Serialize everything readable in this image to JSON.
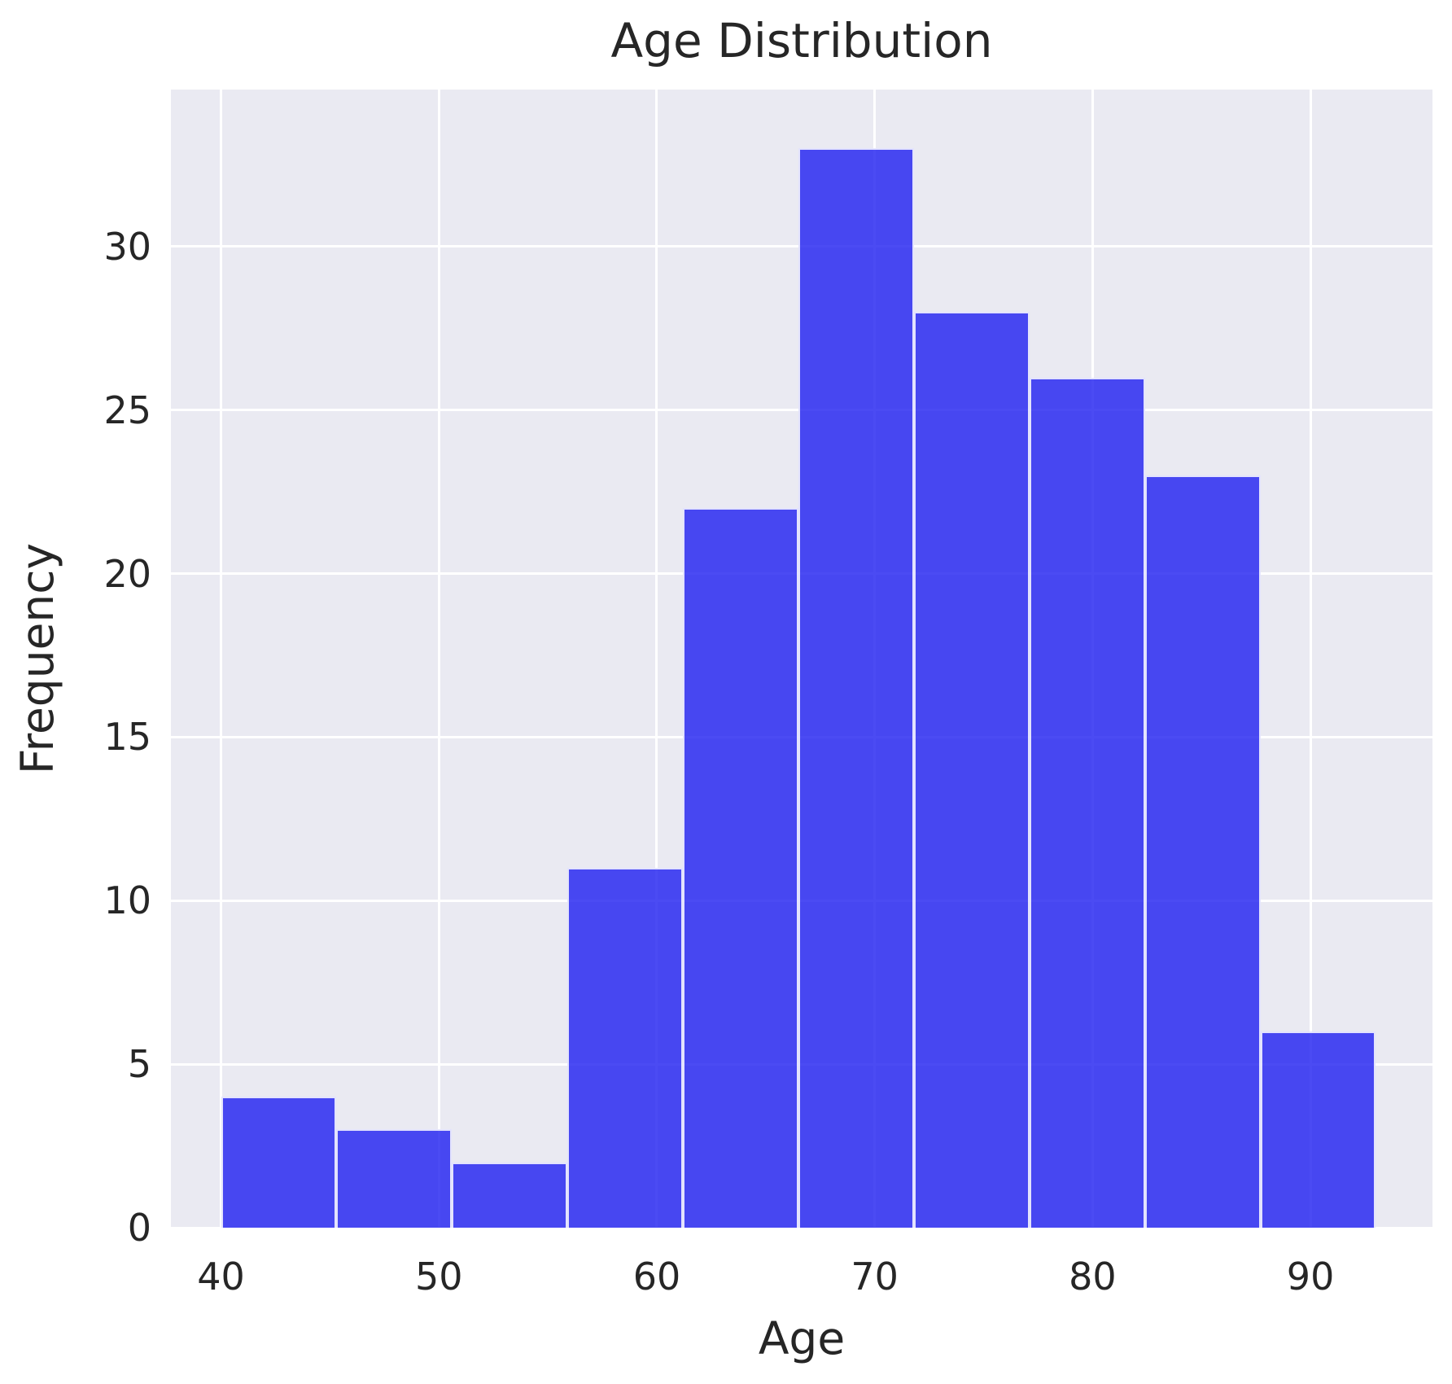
{
  "chart_data": {
    "type": "bar",
    "subtype": "histogram",
    "title": "Age Distribution",
    "xlabel": "Age",
    "ylabel": "Frequency",
    "bin_edges": [
      40,
      45.3,
      50.6,
      55.9,
      61.2,
      66.5,
      71.8,
      77.1,
      82.4,
      87.7,
      93
    ],
    "values": [
      4,
      3,
      2,
      11,
      22,
      33,
      28,
      26,
      23,
      6
    ],
    "x_ticks": [
      40,
      50,
      60,
      70,
      80,
      90
    ],
    "y_ticks": [
      0,
      5,
      10,
      15,
      20,
      25,
      30
    ],
    "xlim": [
      37.7,
      95.6
    ],
    "ylim": [
      0,
      34.8
    ],
    "grid": true,
    "legend": null,
    "colors": {
      "bar_fill": "rgba(30,30,240,0.8)",
      "bar_fill_hex_apparent": "#4646f0",
      "bar_edge": "rgba(255,255,255,0.85)",
      "plot_background": "#eaeaf2",
      "gridline": "#ffffff",
      "text": "#262626",
      "figure_background": "#ffffff"
    }
  }
}
